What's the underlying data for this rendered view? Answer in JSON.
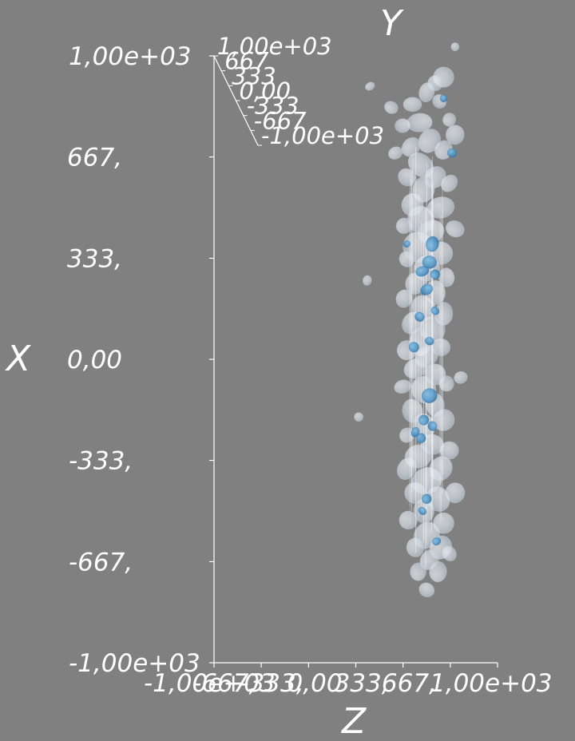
{
  "viewport": {
    "background": "#808080"
  },
  "chart_data": {
    "type": "scatter",
    "render": "3d-isosurface-volume",
    "title": "",
    "axes": {
      "x": {
        "label": "X",
        "range": [
          -1000,
          1000
        ],
        "ticks": [
          1000,
          667,
          333,
          0,
          -333,
          -667,
          -1000
        ],
        "tick_labels": [
          "1,00e+03",
          "667,",
          "333,",
          "0,00",
          "-333,",
          "-667,",
          "-1,00e+03"
        ]
      },
      "y": {
        "label": "Y",
        "range": [
          -1000,
          1000
        ],
        "ticks": [
          1000,
          667,
          333,
          0,
          -333,
          -667,
          -1000
        ],
        "tick_labels": [
          "1,00e+03",
          "667",
          "333",
          "0,00",
          "-333",
          "-667",
          "-1,00e+03"
        ]
      },
      "z": {
        "label": "Z",
        "range": [
          -1000,
          1000
        ],
        "ticks": [
          -1000,
          -667,
          -333,
          0,
          333,
          667,
          1000
        ],
        "tick_labels": [
          "-1,00e+03",
          "-667,",
          "-333,",
          "0,00",
          "333,",
          "667,",
          "1,00e+03"
        ]
      }
    },
    "colors": {
      "outer_surface": "#d6dde6",
      "inner_surface": "#4f96c8",
      "axis_line": "#ffffff"
    },
    "blobs": [
      [
        620,
        930,
        70,
        "o"
      ],
      [
        560,
        910,
        55,
        "o"
      ],
      [
        500,
        880,
        60,
        "o"
      ],
      [
        590,
        850,
        50,
        "o"
      ],
      [
        400,
        840,
        60,
        "o"
      ],
      [
        250,
        830,
        45,
        "o"
      ],
      [
        660,
        790,
        45,
        "o"
      ],
      [
        450,
        780,
        75,
        "o"
      ],
      [
        330,
        770,
        55,
        "o"
      ],
      [
        700,
        740,
        70,
        "o"
      ],
      [
        520,
        720,
        80,
        "o"
      ],
      [
        390,
        700,
        60,
        "o"
      ],
      [
        620,
        690,
        65,
        "o"
      ],
      [
        280,
        680,
        45,
        "o"
      ],
      [
        460,
        640,
        85,
        "o"
      ],
      [
        560,
        600,
        70,
        "o"
      ],
      [
        360,
        600,
        60,
        "o"
      ],
      [
        660,
        580,
        60,
        "o"
      ],
      [
        480,
        560,
        90,
        "o"
      ],
      [
        400,
        510,
        75,
        "o"
      ],
      [
        600,
        500,
        80,
        "o"
      ],
      [
        460,
        460,
        95,
        "o"
      ],
      [
        340,
        440,
        55,
        "o"
      ],
      [
        700,
        430,
        60,
        "o"
      ],
      [
        530,
        420,
        85,
        "o"
      ],
      [
        440,
        370,
        90,
        "o"
      ],
      [
        600,
        350,
        75,
        "o"
      ],
      [
        360,
        330,
        60,
        "o"
      ],
      [
        500,
        300,
        95,
        "o"
      ],
      [
        640,
        270,
        60,
        "o"
      ],
      [
        420,
        250,
        80,
        "o"
      ],
      [
        560,
        220,
        85,
        "o"
      ],
      [
        340,
        200,
        55,
        "o"
      ],
      [
        480,
        170,
        90,
        "o"
      ],
      [
        620,
        150,
        70,
        "o"
      ],
      [
        400,
        120,
        75,
        "o"
      ],
      [
        540,
        100,
        80,
        "o"
      ],
      [
        460,
        60,
        90,
        "o"
      ],
      [
        600,
        40,
        75,
        "o"
      ],
      [
        360,
        30,
        60,
        "o"
      ],
      [
        500,
        10,
        85,
        "o"
      ],
      [
        420,
        -30,
        80,
        "o"
      ],
      [
        560,
        -50,
        80,
        "o"
      ],
      [
        640,
        -80,
        60,
        "o"
      ],
      [
        330,
        -90,
        55,
        "o"
      ],
      [
        480,
        -100,
        95,
        "o"
      ],
      [
        560,
        -150,
        75,
        "o"
      ],
      [
        400,
        -170,
        75,
        "o"
      ],
      [
        620,
        -200,
        70,
        "o"
      ],
      [
        480,
        -220,
        90,
        "o"
      ],
      [
        360,
        -250,
        60,
        "o"
      ],
      [
        540,
        -280,
        85,
        "o"
      ],
      [
        660,
        -300,
        65,
        "o"
      ],
      [
        440,
        -320,
        80,
        "o"
      ],
      [
        360,
        -360,
        70,
        "o"
      ],
      [
        600,
        -360,
        75,
        "o"
      ],
      [
        500,
        -400,
        90,
        "o"
      ],
      [
        420,
        -440,
        75,
        "o"
      ],
      [
        700,
        -440,
        60,
        "o"
      ],
      [
        580,
        -460,
        75,
        "o"
      ],
      [
        480,
        -500,
        85,
        "o"
      ],
      [
        370,
        -530,
        60,
        "o"
      ],
      [
        620,
        -540,
        65,
        "o"
      ],
      [
        500,
        -580,
        85,
        "o"
      ],
      [
        420,
        -620,
        70,
        "o"
      ],
      [
        600,
        -620,
        70,
        "o"
      ],
      [
        520,
        -660,
        70,
        "o"
      ],
      [
        440,
        -700,
        60,
        "o"
      ],
      [
        580,
        -700,
        60,
        "o"
      ],
      [
        500,
        -760,
        55,
        "o"
      ],
      [
        660,
        -640,
        50,
        "o"
      ],
      [
        740,
        -60,
        40,
        "o"
      ],
      [
        100,
        900,
        30,
        "o"
      ],
      [
        80,
        260,
        30,
        "o"
      ],
      [
        20,
        -190,
        35,
        "o"
      ],
      [
        700,
        1030,
        30,
        "o"
      ],
      [
        540,
        380,
        55,
        "i"
      ],
      [
        520,
        320,
        45,
        "i"
      ],
      [
        470,
        290,
        40,
        "i"
      ],
      [
        560,
        280,
        35,
        "i"
      ],
      [
        500,
        230,
        40,
        "i"
      ],
      [
        560,
        160,
        30,
        "i"
      ],
      [
        450,
        140,
        35,
        "i"
      ],
      [
        520,
        60,
        30,
        "i"
      ],
      [
        410,
        40,
        30,
        "i"
      ],
      [
        520,
        -120,
        45,
        "i"
      ],
      [
        480,
        -200,
        40,
        "i"
      ],
      [
        540,
        -220,
        30,
        "i"
      ],
      [
        460,
        -260,
        35,
        "i"
      ],
      [
        420,
        -240,
        30,
        "i"
      ],
      [
        500,
        -460,
        30,
        "i"
      ],
      [
        470,
        -500,
        28,
        "i"
      ],
      [
        570,
        -600,
        25,
        "i"
      ],
      [
        620,
        860,
        25,
        "i"
      ],
      [
        360,
        380,
        25,
        "i"
      ],
      [
        680,
        680,
        30,
        "i"
      ]
    ]
  }
}
